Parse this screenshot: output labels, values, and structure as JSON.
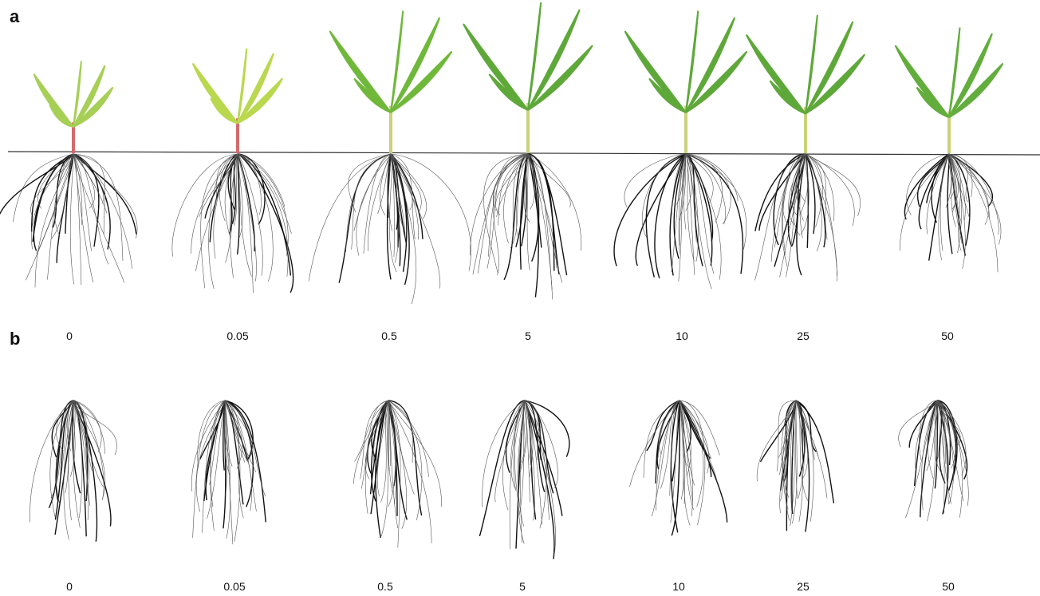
{
  "panels": [
    {
      "label": "a",
      "samples": [
        "0",
        "0.05",
        "0.5",
        "5",
        "10",
        "25",
        "50"
      ]
    },
    {
      "label": "b",
      "samples": [
        "0",
        "0.05",
        "0.5",
        "5",
        "10",
        "25",
        "50"
      ]
    }
  ]
}
